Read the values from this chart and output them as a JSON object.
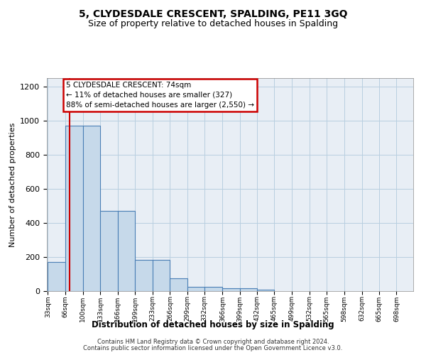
{
  "title": "5, CLYDESDALE CRESCENT, SPALDING, PE11 3GQ",
  "subtitle": "Size of property relative to detached houses in Spalding",
  "xlabel": "Distribution of detached houses by size in Spalding",
  "ylabel": "Number of detached properties",
  "footer1": "Contains HM Land Registry data © Crown copyright and database right 2024.",
  "footer2": "Contains public sector information licensed under the Open Government Licence v3.0.",
  "property_size": 74,
  "annotation_title": "5 CLYDESDALE CRESCENT: 74sqm",
  "annotation_line1": "← 11% of detached houses are smaller (327)",
  "annotation_line2": "88% of semi-detached houses are larger (2,550) →",
  "bin_edges": [
    33,
    66,
    100,
    133,
    166,
    199,
    233,
    266,
    299,
    332,
    366,
    399,
    432,
    465,
    499,
    532,
    565,
    598,
    632,
    665,
    698
  ],
  "bar_heights": [
    170,
    970,
    970,
    470,
    470,
    185,
    185,
    75,
    25,
    25,
    15,
    15,
    10,
    0,
    0,
    0,
    0,
    0,
    0,
    0
  ],
  "bar_color": "#c6d9ea",
  "bar_edge_color": "#4a7fb5",
  "red_line_color": "#cc0000",
  "annotation_box_color": "#cc0000",
  "grid_color": "#b8cfe0",
  "bg_color": "#e8eef5",
  "ylim": [
    0,
    1250
  ],
  "yticks": [
    0,
    200,
    400,
    600,
    800,
    1000,
    1200
  ]
}
